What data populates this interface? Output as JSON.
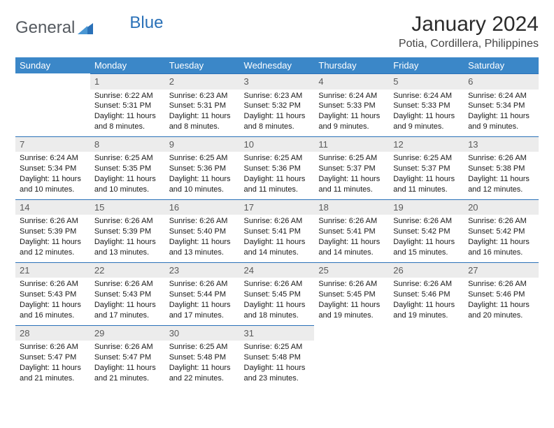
{
  "logo": {
    "general": "General",
    "blue": "Blue"
  },
  "title": "January 2024",
  "location": "Potia, Cordillera, Philippines",
  "weekdays": [
    "Sunday",
    "Monday",
    "Tuesday",
    "Wednesday",
    "Thursday",
    "Friday",
    "Saturday"
  ],
  "colors": {
    "header_bg": "#3b87c8",
    "accent": "#2a71b8",
    "daynum_bg": "#ececec"
  },
  "weeks": [
    [
      {
        "day": "",
        "lines": [
          "",
          "",
          "",
          ""
        ]
      },
      {
        "day": "1",
        "lines": [
          "Sunrise: 6:22 AM",
          "Sunset: 5:31 PM",
          "Daylight: 11 hours",
          "and 8 minutes."
        ]
      },
      {
        "day": "2",
        "lines": [
          "Sunrise: 6:23 AM",
          "Sunset: 5:31 PM",
          "Daylight: 11 hours",
          "and 8 minutes."
        ]
      },
      {
        "day": "3",
        "lines": [
          "Sunrise: 6:23 AM",
          "Sunset: 5:32 PM",
          "Daylight: 11 hours",
          "and 8 minutes."
        ]
      },
      {
        "day": "4",
        "lines": [
          "Sunrise: 6:24 AM",
          "Sunset: 5:33 PM",
          "Daylight: 11 hours",
          "and 9 minutes."
        ]
      },
      {
        "day": "5",
        "lines": [
          "Sunrise: 6:24 AM",
          "Sunset: 5:33 PM",
          "Daylight: 11 hours",
          "and 9 minutes."
        ]
      },
      {
        "day": "6",
        "lines": [
          "Sunrise: 6:24 AM",
          "Sunset: 5:34 PM",
          "Daylight: 11 hours",
          "and 9 minutes."
        ]
      }
    ],
    [
      {
        "day": "7",
        "lines": [
          "Sunrise: 6:24 AM",
          "Sunset: 5:34 PM",
          "Daylight: 11 hours",
          "and 10 minutes."
        ]
      },
      {
        "day": "8",
        "lines": [
          "Sunrise: 6:25 AM",
          "Sunset: 5:35 PM",
          "Daylight: 11 hours",
          "and 10 minutes."
        ]
      },
      {
        "day": "9",
        "lines": [
          "Sunrise: 6:25 AM",
          "Sunset: 5:36 PM",
          "Daylight: 11 hours",
          "and 10 minutes."
        ]
      },
      {
        "day": "10",
        "lines": [
          "Sunrise: 6:25 AM",
          "Sunset: 5:36 PM",
          "Daylight: 11 hours",
          "and 11 minutes."
        ]
      },
      {
        "day": "11",
        "lines": [
          "Sunrise: 6:25 AM",
          "Sunset: 5:37 PM",
          "Daylight: 11 hours",
          "and 11 minutes."
        ]
      },
      {
        "day": "12",
        "lines": [
          "Sunrise: 6:25 AM",
          "Sunset: 5:37 PM",
          "Daylight: 11 hours",
          "and 11 minutes."
        ]
      },
      {
        "day": "13",
        "lines": [
          "Sunrise: 6:26 AM",
          "Sunset: 5:38 PM",
          "Daylight: 11 hours",
          "and 12 minutes."
        ]
      }
    ],
    [
      {
        "day": "14",
        "lines": [
          "Sunrise: 6:26 AM",
          "Sunset: 5:39 PM",
          "Daylight: 11 hours",
          "and 12 minutes."
        ]
      },
      {
        "day": "15",
        "lines": [
          "Sunrise: 6:26 AM",
          "Sunset: 5:39 PM",
          "Daylight: 11 hours",
          "and 13 minutes."
        ]
      },
      {
        "day": "16",
        "lines": [
          "Sunrise: 6:26 AM",
          "Sunset: 5:40 PM",
          "Daylight: 11 hours",
          "and 13 minutes."
        ]
      },
      {
        "day": "17",
        "lines": [
          "Sunrise: 6:26 AM",
          "Sunset: 5:41 PM",
          "Daylight: 11 hours",
          "and 14 minutes."
        ]
      },
      {
        "day": "18",
        "lines": [
          "Sunrise: 6:26 AM",
          "Sunset: 5:41 PM",
          "Daylight: 11 hours",
          "and 14 minutes."
        ]
      },
      {
        "day": "19",
        "lines": [
          "Sunrise: 6:26 AM",
          "Sunset: 5:42 PM",
          "Daylight: 11 hours",
          "and 15 minutes."
        ]
      },
      {
        "day": "20",
        "lines": [
          "Sunrise: 6:26 AM",
          "Sunset: 5:42 PM",
          "Daylight: 11 hours",
          "and 16 minutes."
        ]
      }
    ],
    [
      {
        "day": "21",
        "lines": [
          "Sunrise: 6:26 AM",
          "Sunset: 5:43 PM",
          "Daylight: 11 hours",
          "and 16 minutes."
        ]
      },
      {
        "day": "22",
        "lines": [
          "Sunrise: 6:26 AM",
          "Sunset: 5:43 PM",
          "Daylight: 11 hours",
          "and 17 minutes."
        ]
      },
      {
        "day": "23",
        "lines": [
          "Sunrise: 6:26 AM",
          "Sunset: 5:44 PM",
          "Daylight: 11 hours",
          "and 17 minutes."
        ]
      },
      {
        "day": "24",
        "lines": [
          "Sunrise: 6:26 AM",
          "Sunset: 5:45 PM",
          "Daylight: 11 hours",
          "and 18 minutes."
        ]
      },
      {
        "day": "25",
        "lines": [
          "Sunrise: 6:26 AM",
          "Sunset: 5:45 PM",
          "Daylight: 11 hours",
          "and 19 minutes."
        ]
      },
      {
        "day": "26",
        "lines": [
          "Sunrise: 6:26 AM",
          "Sunset: 5:46 PM",
          "Daylight: 11 hours",
          "and 19 minutes."
        ]
      },
      {
        "day": "27",
        "lines": [
          "Sunrise: 6:26 AM",
          "Sunset: 5:46 PM",
          "Daylight: 11 hours",
          "and 20 minutes."
        ]
      }
    ],
    [
      {
        "day": "28",
        "lines": [
          "Sunrise: 6:26 AM",
          "Sunset: 5:47 PM",
          "Daylight: 11 hours",
          "and 21 minutes."
        ]
      },
      {
        "day": "29",
        "lines": [
          "Sunrise: 6:26 AM",
          "Sunset: 5:47 PM",
          "Daylight: 11 hours",
          "and 21 minutes."
        ]
      },
      {
        "day": "30",
        "lines": [
          "Sunrise: 6:25 AM",
          "Sunset: 5:48 PM",
          "Daylight: 11 hours",
          "and 22 minutes."
        ]
      },
      {
        "day": "31",
        "lines": [
          "Sunrise: 6:25 AM",
          "Sunset: 5:48 PM",
          "Daylight: 11 hours",
          "and 23 minutes."
        ]
      },
      {
        "day": "",
        "lines": [
          "",
          "",
          "",
          ""
        ]
      },
      {
        "day": "",
        "lines": [
          "",
          "",
          "",
          ""
        ]
      },
      {
        "day": "",
        "lines": [
          "",
          "",
          "",
          ""
        ]
      }
    ]
  ]
}
